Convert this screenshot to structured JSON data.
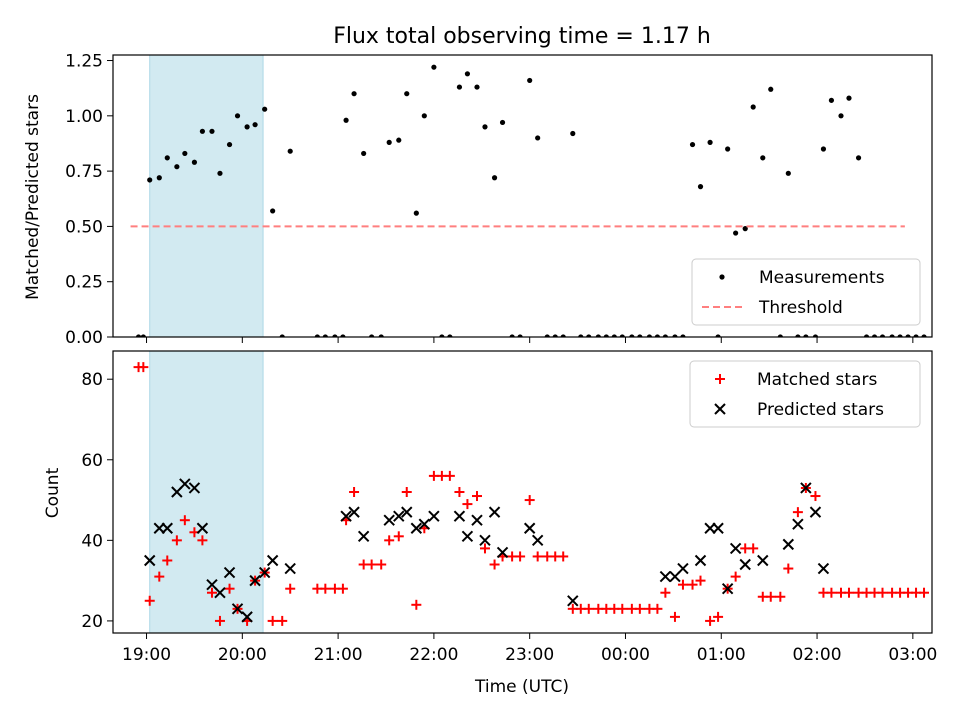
{
  "chart_data": [
    {
      "type": "scatter",
      "title": "Flux total observing time = 1.17 h",
      "ylabel": "Matched/Predicted stars",
      "xlabel": "",
      "ylim": [
        0,
        1.275
      ],
      "xlim": [
        "18:39",
        "03:12"
      ],
      "yticks": [
        0.0,
        0.25,
        0.5,
        0.75,
        1.0,
        1.25
      ],
      "ytick_labels": [
        "0.00",
        "0.25",
        "0.50",
        "0.75",
        "1.00",
        "1.25"
      ],
      "highlight_span": {
        "start": "19:02",
        "end": "20:13"
      },
      "grid": false,
      "legend_position": "lower right",
      "series": [
        {
          "name": "Measurements",
          "marker": "dot",
          "color": "#000000",
          "points": [
            [
              "18:55",
              0
            ],
            [
              "18:58",
              0
            ],
            [
              "19:02",
              0.71
            ],
            [
              "19:08",
              0.72
            ],
            [
              "19:13",
              0.81
            ],
            [
              "19:19",
              0.77
            ],
            [
              "19:24",
              0.83
            ],
            [
              "19:30",
              0.79
            ],
            [
              "19:35",
              0.93
            ],
            [
              "19:41",
              0.93
            ],
            [
              "19:46",
              0.74
            ],
            [
              "19:52",
              0.87
            ],
            [
              "19:57",
              1.0
            ],
            [
              "20:03",
              0.95
            ],
            [
              "20:08",
              0.96
            ],
            [
              "20:14",
              1.03
            ],
            [
              "20:19",
              0.57
            ],
            [
              "20:25",
              0
            ],
            [
              "20:30",
              0.84
            ],
            [
              "20:47",
              0
            ],
            [
              "20:52",
              0
            ],
            [
              "20:58",
              0
            ],
            [
              "21:03",
              0
            ],
            [
              "21:05",
              0.98
            ],
            [
              "21:10",
              1.1
            ],
            [
              "21:16",
              0.83
            ],
            [
              "21:21",
              0
            ],
            [
              "21:27",
              0
            ],
            [
              "21:32",
              0.88
            ],
            [
              "21:38",
              0.89
            ],
            [
              "21:43",
              1.1
            ],
            [
              "21:49",
              0.56
            ],
            [
              "21:54",
              1.0
            ],
            [
              "22:00",
              1.22
            ],
            [
              "22:05",
              0
            ],
            [
              "22:10",
              0
            ],
            [
              "22:16",
              1.13
            ],
            [
              "22:21",
              1.19
            ],
            [
              "22:27",
              1.13
            ],
            [
              "22:32",
              0.95
            ],
            [
              "22:38",
              0.72
            ],
            [
              "22:43",
              0.97
            ],
            [
              "22:49",
              0
            ],
            [
              "22:54",
              0
            ],
            [
              "23:00",
              1.16
            ],
            [
              "23:05",
              0.9
            ],
            [
              "23:11",
              0
            ],
            [
              "23:16",
              0
            ],
            [
              "23:21",
              0
            ],
            [
              "23:27",
              0.92
            ],
            [
              "23:32",
              0
            ],
            [
              "23:37",
              0
            ],
            [
              "23:43",
              0
            ],
            [
              "23:48",
              0
            ],
            [
              "23:53",
              0
            ],
            [
              "23:58",
              0
            ],
            [
              "00:04",
              0
            ],
            [
              "00:09",
              0
            ],
            [
              "00:15",
              0
            ],
            [
              "00:20",
              0
            ],
            [
              "00:25",
              0
            ],
            [
              "00:31",
              0
            ],
            [
              "00:36",
              0
            ],
            [
              "00:42",
              0.87
            ],
            [
              "00:47",
              0.68
            ],
            [
              "00:53",
              0.88
            ],
            [
              "00:58",
              0
            ],
            [
              "01:04",
              0.85
            ],
            [
              "01:09",
              0.47
            ],
            [
              "01:15",
              0.49
            ],
            [
              "01:20",
              1.04
            ],
            [
              "01:26",
              0.81
            ],
            [
              "01:31",
              1.12
            ],
            [
              "01:37",
              0
            ],
            [
              "01:42",
              0.74
            ],
            [
              "01:48",
              0
            ],
            [
              "01:53",
              0
            ],
            [
              "01:59",
              0
            ],
            [
              "02:04",
              0.85
            ],
            [
              "02:09",
              1.07
            ],
            [
              "02:15",
              1.0
            ],
            [
              "02:20",
              1.08
            ],
            [
              "02:26",
              0.81
            ],
            [
              "02:31",
              0
            ],
            [
              "02:36",
              0
            ],
            [
              "02:41",
              0
            ],
            [
              "02:47",
              0
            ],
            [
              "02:52",
              0
            ],
            [
              "02:57",
              0
            ],
            [
              "03:02",
              0
            ],
            [
              "03:07",
              0
            ]
          ]
        },
        {
          "name": "Threshold",
          "style": "dashed-line",
          "color": "#ff7f7f",
          "points": [
            [
              "18:50",
              0.5
            ],
            [
              "02:55",
              0.5
            ]
          ]
        }
      ]
    },
    {
      "type": "scatter",
      "title": "",
      "ylabel": "Count",
      "xlabel": "Time (UTC)",
      "ylim": [
        17,
        87
      ],
      "xlim": [
        "18:39",
        "03:12"
      ],
      "yticks": [
        20,
        40,
        60,
        80
      ],
      "ytick_labels": [
        "20",
        "40",
        "60",
        "80"
      ],
      "xtick_labels": [
        "19:00",
        "20:00",
        "21:00",
        "22:00",
        "23:00",
        "00:00",
        "01:00",
        "02:00",
        "03:00"
      ],
      "highlight_span": {
        "start": "19:02",
        "end": "20:13"
      },
      "grid": false,
      "legend_position": "upper right",
      "series": [
        {
          "name": "Matched stars",
          "marker": "plus",
          "color": "#ff0000",
          "points": [
            [
              "18:55",
              83
            ],
            [
              "18:58",
              83
            ],
            [
              "19:02",
              25
            ],
            [
              "19:08",
              31
            ],
            [
              "19:13",
              35
            ],
            [
              "19:19",
              40
            ],
            [
              "19:24",
              45
            ],
            [
              "19:30",
              42
            ],
            [
              "19:35",
              40
            ],
            [
              "19:41",
              27
            ],
            [
              "19:46",
              20
            ],
            [
              "19:52",
              28
            ],
            [
              "19:57",
              23
            ],
            [
              "20:03",
              20
            ],
            [
              "20:08",
              30
            ],
            [
              "20:14",
              32
            ],
            [
              "20:19",
              20
            ],
            [
              "20:25",
              20
            ],
            [
              "20:30",
              28
            ],
            [
              "20:47",
              28
            ],
            [
              "20:52",
              28
            ],
            [
              "20:58",
              28
            ],
            [
              "21:03",
              28
            ],
            [
              "21:05",
              45
            ],
            [
              "21:10",
              52
            ],
            [
              "21:16",
              34
            ],
            [
              "21:21",
              34
            ],
            [
              "21:27",
              34
            ],
            [
              "21:32",
              40
            ],
            [
              "21:38",
              41
            ],
            [
              "21:43",
              52
            ],
            [
              "21:49",
              24
            ],
            [
              "21:54",
              43
            ],
            [
              "22:00",
              56
            ],
            [
              "22:05",
              56
            ],
            [
              "22:10",
              56
            ],
            [
              "22:16",
              52
            ],
            [
              "22:21",
              49
            ],
            [
              "22:27",
              51
            ],
            [
              "22:32",
              38
            ],
            [
              "22:38",
              34
            ],
            [
              "22:43",
              36
            ],
            [
              "22:49",
              36
            ],
            [
              "22:54",
              36
            ],
            [
              "23:00",
              50
            ],
            [
              "23:05",
              36
            ],
            [
              "23:11",
              36
            ],
            [
              "23:16",
              36
            ],
            [
              "23:21",
              36
            ],
            [
              "23:27",
              23
            ],
            [
              "23:32",
              23
            ],
            [
              "23:37",
              23
            ],
            [
              "23:43",
              23
            ],
            [
              "23:48",
              23
            ],
            [
              "23:53",
              23
            ],
            [
              "23:58",
              23
            ],
            [
              "00:04",
              23
            ],
            [
              "00:09",
              23
            ],
            [
              "00:15",
              23
            ],
            [
              "00:20",
              23
            ],
            [
              "00:25",
              27
            ],
            [
              "00:31",
              21
            ],
            [
              "00:36",
              29
            ],
            [
              "00:42",
              29
            ],
            [
              "00:47",
              30
            ],
            [
              "00:53",
              20
            ],
            [
              "00:58",
              21
            ],
            [
              "01:04",
              28
            ],
            [
              "01:09",
              31
            ],
            [
              "01:15",
              38
            ],
            [
              "01:20",
              38
            ],
            [
              "01:26",
              26
            ],
            [
              "01:31",
              26
            ],
            [
              "01:37",
              26
            ],
            [
              "01:42",
              33
            ],
            [
              "01:48",
              47
            ],
            [
              "01:53",
              53
            ],
            [
              "01:59",
              51
            ],
            [
              "02:04",
              27
            ],
            [
              "02:09",
              27
            ],
            [
              "02:15",
              27
            ],
            [
              "02:20",
              27
            ],
            [
              "02:26",
              27
            ],
            [
              "02:31",
              27
            ],
            [
              "02:36",
              27
            ],
            [
              "02:41",
              27
            ],
            [
              "02:47",
              27
            ],
            [
              "02:52",
              27
            ],
            [
              "02:57",
              27
            ],
            [
              "03:02",
              27
            ],
            [
              "03:07",
              27
            ]
          ]
        },
        {
          "name": "Predicted stars",
          "marker": "x",
          "color": "#000000",
          "points": [
            [
              "19:02",
              35
            ],
            [
              "19:08",
              43
            ],
            [
              "19:13",
              43
            ],
            [
              "19:19",
              52
            ],
            [
              "19:24",
              54
            ],
            [
              "19:30",
              53
            ],
            [
              "19:35",
              43
            ],
            [
              "19:41",
              29
            ],
            [
              "19:46",
              27
            ],
            [
              "19:52",
              32
            ],
            [
              "19:57",
              23
            ],
            [
              "20:03",
              21
            ],
            [
              "20:08",
              30
            ],
            [
              "20:14",
              32
            ],
            [
              "20:19",
              35
            ],
            [
              "20:30",
              33
            ],
            [
              "21:05",
              46
            ],
            [
              "21:10",
              47
            ],
            [
              "21:16",
              41
            ],
            [
              "21:32",
              45
            ],
            [
              "21:38",
              46
            ],
            [
              "21:43",
              47
            ],
            [
              "21:49",
              43
            ],
            [
              "21:54",
              44
            ],
            [
              "22:00",
              46
            ],
            [
              "22:16",
              46
            ],
            [
              "22:21",
              41
            ],
            [
              "22:27",
              45
            ],
            [
              "22:32",
              40
            ],
            [
              "22:38",
              47
            ],
            [
              "22:43",
              37
            ],
            [
              "23:00",
              43
            ],
            [
              "23:05",
              40
            ],
            [
              "23:27",
              25
            ],
            [
              "00:25",
              31
            ],
            [
              "00:31",
              31
            ],
            [
              "00:36",
              33
            ],
            [
              "00:47",
              35
            ],
            [
              "00:53",
              43
            ],
            [
              "00:58",
              43
            ],
            [
              "01:04",
              28
            ],
            [
              "01:09",
              38
            ],
            [
              "01:15",
              34
            ],
            [
              "01:26",
              35
            ],
            [
              "01:42",
              39
            ],
            [
              "01:48",
              44
            ],
            [
              "01:53",
              53
            ],
            [
              "01:59",
              47
            ],
            [
              "02:04",
              33
            ]
          ]
        }
      ]
    }
  ],
  "colors": {
    "highlight_fill": "#add8e6",
    "threshold": "#ff7f7f",
    "matched": "#ff0000",
    "predicted": "#000000",
    "measurement": "#000000",
    "axes": "#000000",
    "legend_border": "#cccccc"
  }
}
